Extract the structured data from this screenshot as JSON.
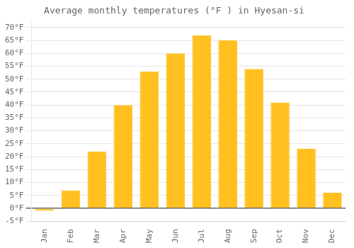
{
  "chart_data": {
    "type": "bar",
    "title": "Average monthly temperatures (°F ) in Hyesan-si",
    "categories": [
      "Jan",
      "Feb",
      "Mar",
      "Apr",
      "May",
      "Jun",
      "Jul",
      "Aug",
      "Sep",
      "Oct",
      "Nov",
      "Dec"
    ],
    "values": [
      -1,
      7,
      22,
      40,
      53,
      60,
      67,
      65,
      54,
      41,
      23,
      6
    ],
    "color": "#FFC020",
    "ylim": [
      -5,
      72
    ],
    "yticks": [
      {
        "value": -5,
        "label": "-5°F"
      },
      {
        "value": 0,
        "label": "0°F"
      },
      {
        "value": 5,
        "label": "5°F"
      },
      {
        "value": 10,
        "label": "10°F"
      },
      {
        "value": 15,
        "label": "15°F"
      },
      {
        "value": 20,
        "label": "20°F"
      },
      {
        "value": 25,
        "label": "25°F"
      },
      {
        "value": 30,
        "label": "30°F"
      },
      {
        "value": 35,
        "label": "35°F"
      },
      {
        "value": 40,
        "label": "40°F"
      },
      {
        "value": 45,
        "label": "45°F"
      },
      {
        "value": 50,
        "label": "50°F"
      },
      {
        "value": 55,
        "label": "55°F"
      },
      {
        "value": 60,
        "label": "60°F"
      },
      {
        "value": 65,
        "label": "65°F"
      },
      {
        "value": 70,
        "label": "70°F"
      }
    ],
    "grid": true
  }
}
